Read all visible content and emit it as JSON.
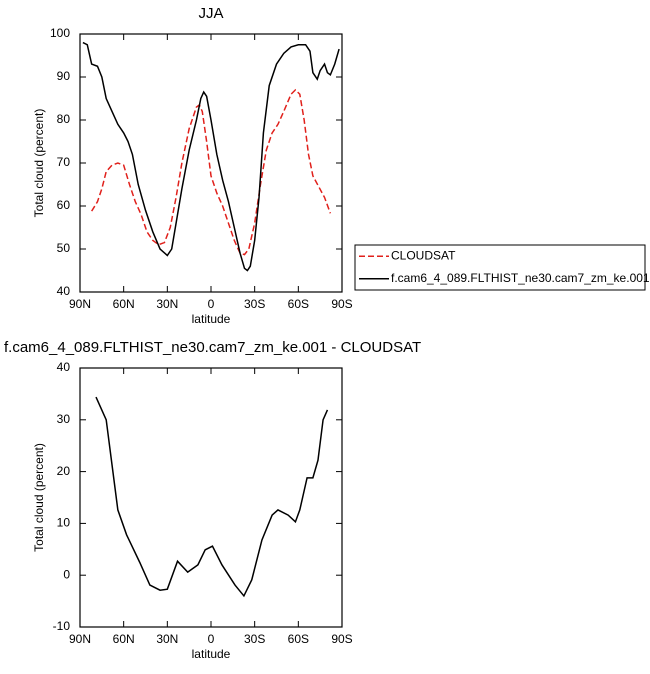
{
  "chart_data": [
    {
      "type": "line",
      "title": "JJA",
      "xlabel": "latitude",
      "ylabel": "Total cloud (percent)",
      "xlim": [
        90,
        -90
      ],
      "xticks": [
        {
          "value": 90,
          "label": "90N"
        },
        {
          "value": 60,
          "label": "60N"
        },
        {
          "value": 30,
          "label": "30N"
        },
        0,
        {
          "value": -30,
          "label": "30S"
        },
        {
          "value": -60,
          "label": "60S"
        },
        {
          "value": -90,
          "label": "90S"
        }
      ],
      "ylim": [
        40,
        100
      ],
      "yticks": [
        40,
        50,
        60,
        70,
        80,
        90,
        100
      ],
      "legend": "right",
      "series": [
        {
          "name": "CLOUDSAT",
          "color": "#e0201b",
          "style": "dashed",
          "x": [
            82,
            78,
            75,
            72,
            68,
            64,
            60,
            56,
            52,
            48,
            44,
            40,
            36,
            32,
            28,
            24,
            20,
            15,
            10,
            8,
            6,
            3,
            0,
            -4,
            -8,
            -12,
            -16,
            -20,
            -23,
            -26,
            -30,
            -34,
            -38,
            -42,
            -46,
            -50,
            -55,
            -58,
            -61,
            -64,
            -67,
            -70,
            -74,
            -78,
            -82
          ],
          "values": [
            58.8,
            61,
            64,
            68,
            69.5,
            70,
            69.5,
            65,
            61,
            58,
            54,
            52,
            51,
            51.5,
            55,
            62,
            70,
            78,
            83,
            83.5,
            82,
            75,
            67,
            63,
            60,
            56,
            52,
            49,
            48.7,
            50,
            56,
            65,
            73,
            77,
            79,
            82,
            86,
            87,
            86,
            80,
            72,
            67,
            64.5,
            62,
            58.3
          ]
        },
        {
          "name": "f.cam6_4_089.FLTHIST_ne30.cam7_zm_ke.001",
          "color": "#000000",
          "style": "solid",
          "x": [
            88,
            85,
            82,
            78,
            75,
            72,
            68,
            64,
            60,
            57,
            54,
            50,
            45,
            40,
            35,
            30,
            27,
            24,
            20,
            15,
            10,
            7,
            5,
            3,
            0,
            -4,
            -8,
            -12,
            -16,
            -20,
            -23,
            -25,
            -27,
            -30,
            -33,
            -36,
            -40,
            -45,
            -50,
            -55,
            -60,
            -65,
            -68,
            -70,
            -73,
            -75,
            -78,
            -80,
            -82,
            -85,
            -88
          ],
          "values": [
            98,
            97.5,
            93,
            92.5,
            90,
            85,
            82,
            79,
            77,
            75,
            72,
            65,
            59,
            54,
            50,
            48.5,
            50,
            56,
            64,
            73,
            80,
            85,
            86.5,
            85.5,
            80,
            72,
            66,
            61,
            55,
            49,
            45.5,
            45,
            46,
            52,
            62,
            77,
            88,
            93,
            95.5,
            97,
            97.5,
            97.5,
            96,
            91,
            89.5,
            91.5,
            93,
            91,
            90.5,
            93,
            96.5
          ]
        }
      ]
    },
    {
      "type": "line",
      "title": "f.cam6_4_089.FLTHIST_ne30.cam7_zm_ke.001 - CLOUDSAT",
      "xlabel": "latitude",
      "ylabel": "Total cloud (percent)",
      "xlim": [
        90,
        -90
      ],
      "xticks": [
        {
          "value": 90,
          "label": "90N"
        },
        {
          "value": 60,
          "label": "60N"
        },
        {
          "value": 30,
          "label": "30N"
        },
        0,
        {
          "value": -30,
          "label": "30S"
        },
        {
          "value": -60,
          "label": "60S"
        },
        {
          "value": -90,
          "label": "90S"
        }
      ],
      "ylim": [
        -10,
        40
      ],
      "yticks": [
        -10,
        0,
        10,
        20,
        30,
        40
      ],
      "series": [
        {
          "color": "#000000",
          "style": "solid",
          "x": [
            79,
            72,
            68,
            64,
            58,
            49,
            42,
            35,
            30,
            23,
            16,
            9,
            4,
            -1,
            -7.5,
            -16.5,
            -22.6,
            -28,
            -35,
            -42,
            -46,
            -53,
            -58,
            -61,
            -66,
            -70,
            -73.5,
            -77,
            -80
          ],
          "values": [
            34.4,
            30,
            21.3,
            12.6,
            7.8,
            2.5,
            -1.9,
            -2.9,
            -2.7,
            2.7,
            0.6,
            2,
            4.9,
            5.6,
            2,
            -1.9,
            -4,
            -0.9,
            6.8,
            11.6,
            12.6,
            11.6,
            10.3,
            12.6,
            18.8,
            18.8,
            22.2,
            30,
            31.9
          ]
        }
      ]
    }
  ]
}
